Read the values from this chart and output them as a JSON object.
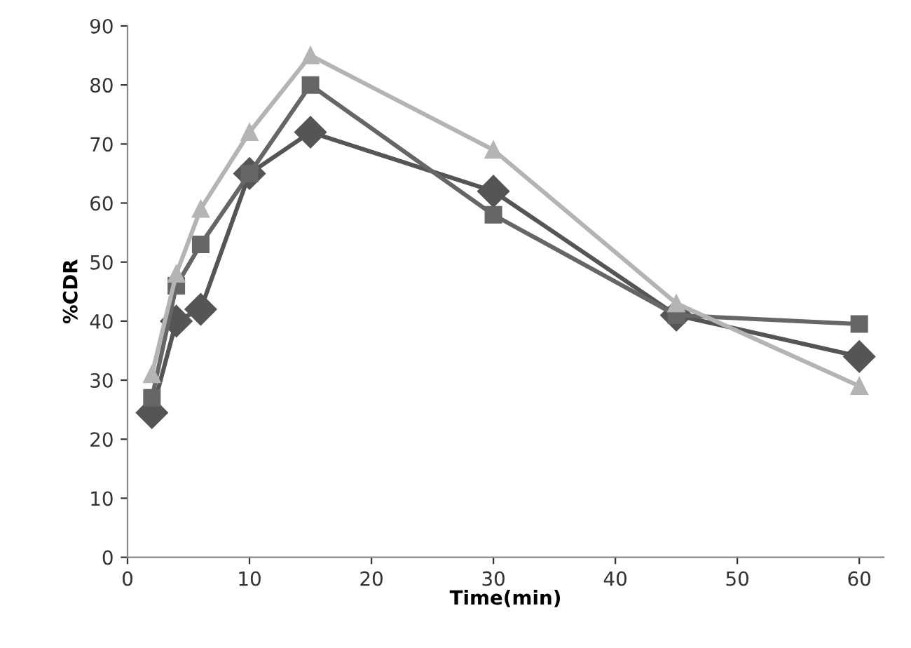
{
  "chart_data": {
    "type": "line",
    "xlabel": "Time(min)",
    "ylabel": "%CDR",
    "xlim": [
      0,
      62
    ],
    "ylim": [
      0,
      90
    ],
    "xticks": [
      0,
      10,
      20,
      30,
      40,
      50,
      60
    ],
    "yticks": [
      0,
      10,
      20,
      30,
      40,
      50,
      60,
      70,
      80,
      90
    ],
    "grid": false,
    "legend": false,
    "line_style": "solid",
    "series": [
      {
        "color": "#555555",
        "marker": "diamond",
        "x": [
          2,
          4,
          6,
          10,
          15,
          30,
          45,
          60
        ],
        "values": [
          24.5,
          40,
          42,
          65,
          72,
          62,
          41,
          34
        ]
      },
      {
        "color": "#666666",
        "marker": "square",
        "x": [
          2,
          4,
          6,
          10,
          15,
          30,
          45,
          60
        ],
        "values": [
          27,
          46,
          53,
          65,
          80,
          58,
          41,
          39.5
        ]
      },
      {
        "color": "#b4b4b4",
        "marker": "triangle",
        "x": [
          2,
          4,
          6,
          10,
          15,
          30,
          45,
          60
        ],
        "values": [
          31,
          48,
          59,
          72,
          85,
          69,
          43,
          29
        ]
      }
    ]
  }
}
